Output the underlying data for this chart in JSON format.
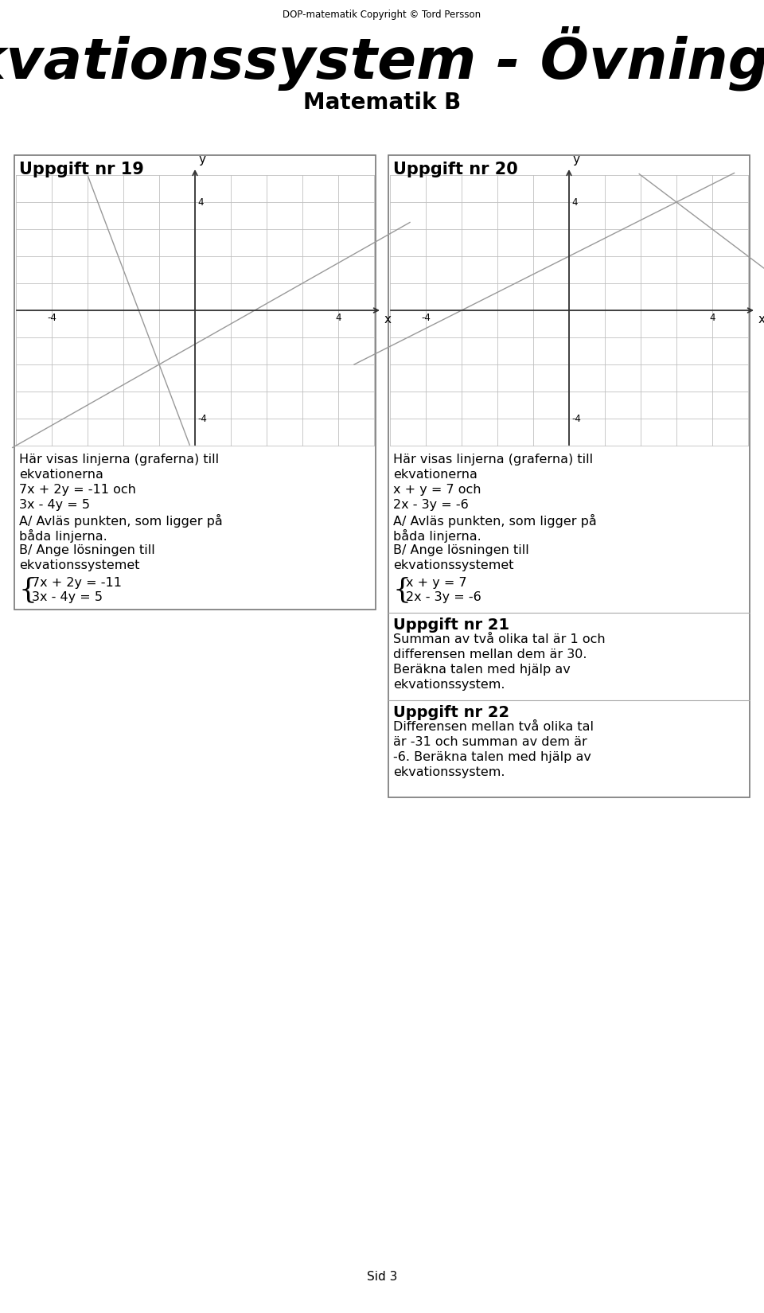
{
  "page_title": "Ekvationssystem - Övningar",
  "page_subtitle": "Matematik B",
  "copyright": "DOP-matematik Copyright © Tord Persson",
  "footer": "Sid 3",
  "background_color": "#ffffff",
  "grid_color": "#c0c0c0",
  "line_color": "#999999",
  "task19_title": "Uppgift nr 19",
  "task20_title": "Uppgift nr 20",
  "task21_title": "Uppgift nr 21",
  "task22_title": "Uppgift nr 22",
  "task19_desc1": "Här visas linjerna (graferna) till",
  "task19_desc2": "ekvationerna",
  "task19_desc3": "7x + 2y = -11 och",
  "task19_desc4": "3x - 4y = 5",
  "task19_desc5": "A/ Avläs punkten, som ligger på",
  "task19_desc6": "båda linjerna.",
  "task19_desc7": "B/ Ange lösningen till",
  "task19_desc8": "ekvationssystemet",
  "task19_sys1": "7x + 2y = -11",
  "task19_sys2": "3x - 4y = 5",
  "task20_desc1": "Här visas linjerna (graferna) till",
  "task20_desc2": "ekvationerna",
  "task20_desc3": "x + y = 7 och",
  "task20_desc4": "2x - 3y = -6",
  "task20_desc5": "A/ Avläs punkten, som ligger på",
  "task20_desc6": "båda linjerna.",
  "task20_desc7": "B/ Ange lösningen till",
  "task20_desc8": "ekvationssystemet",
  "task20_sys1": "x + y = 7",
  "task20_sys2": "2x - 3y = -6",
  "task21_text1": "Summan av två olika tal är 1 och",
  "task21_text2": "differensen mellan dem är 30.",
  "task21_text3": "Beräkna talen med hjälp av",
  "task21_text4": "ekvationssystem.",
  "task22_text1": "Differensen mellan två olika tal",
  "task22_text2": "är -31 och summan av dem är",
  "task22_text3": "-6. Beräkna talen med hjälp av",
  "task22_text4": "ekvationssystem."
}
